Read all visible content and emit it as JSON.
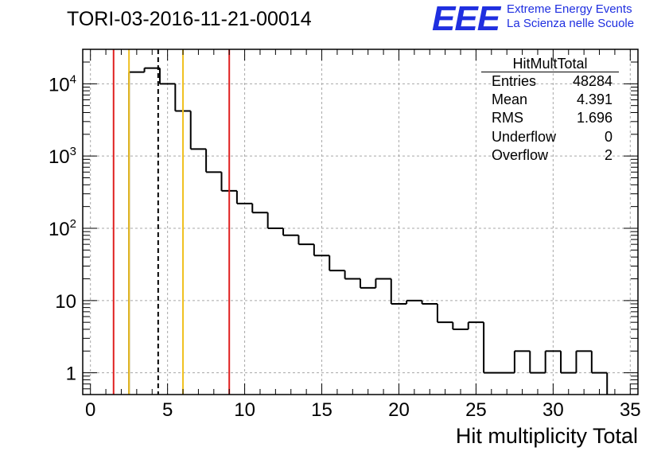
{
  "title": "TORI-03-2016-11-21-00014",
  "logo": {
    "mark": "EEE",
    "line1": "Extreme Energy Events",
    "line2": "La Scienza nelle Scuole",
    "color": "#1f2fe0"
  },
  "stats": {
    "title": "HitMultTotal",
    "rows": [
      {
        "label": "Entries",
        "value": "48284"
      },
      {
        "label": "Mean",
        "value": "4.391"
      },
      {
        "label": "RMS",
        "value": "1.696"
      },
      {
        "label": "Underflow",
        "value": "0"
      },
      {
        "label": "Overflow",
        "value": "2"
      }
    ]
  },
  "chart_data": {
    "type": "histogram",
    "title": "TORI-03-2016-11-21-00014",
    "xlabel": "Hit multiplicity Total",
    "ylabel": "",
    "xlim": [
      -0.5,
      35.5
    ],
    "ylim": [
      0.5,
      30000
    ],
    "yscale": "log",
    "grid": true,
    "bin_width": 1,
    "bin_edges_start": -0.5,
    "counts": [
      0,
      0,
      0,
      14500,
      16500,
      10000,
      4200,
      1250,
      600,
      330,
      220,
      165,
      100,
      80,
      60,
      42,
      26,
      20,
      15,
      20,
      9,
      10,
      9,
      5,
      4,
      5,
      1,
      1,
      2,
      1,
      2,
      1,
      2,
      1,
      0,
      0
    ],
    "xticks": [
      0,
      5,
      10,
      15,
      20,
      25,
      30,
      35
    ],
    "yticks": [
      {
        "value": 1,
        "label": "1"
      },
      {
        "value": 10,
        "label": "10"
      },
      {
        "value": 100,
        "label": "10",
        "exp": "2"
      },
      {
        "value": 1000,
        "label": "10",
        "exp": "3"
      },
      {
        "value": 10000,
        "label": "10",
        "exp": "4"
      }
    ],
    "vlines": [
      {
        "x": 1.5,
        "color": "#e02020",
        "style": "solid"
      },
      {
        "x": 2.5,
        "color": "#f0c020",
        "style": "solid"
      },
      {
        "x": 4.391,
        "color": "#000000",
        "style": "dashed"
      },
      {
        "x": 6.0,
        "color": "#f0c020",
        "style": "solid"
      },
      {
        "x": 9.0,
        "color": "#e02020",
        "style": "solid"
      }
    ]
  }
}
